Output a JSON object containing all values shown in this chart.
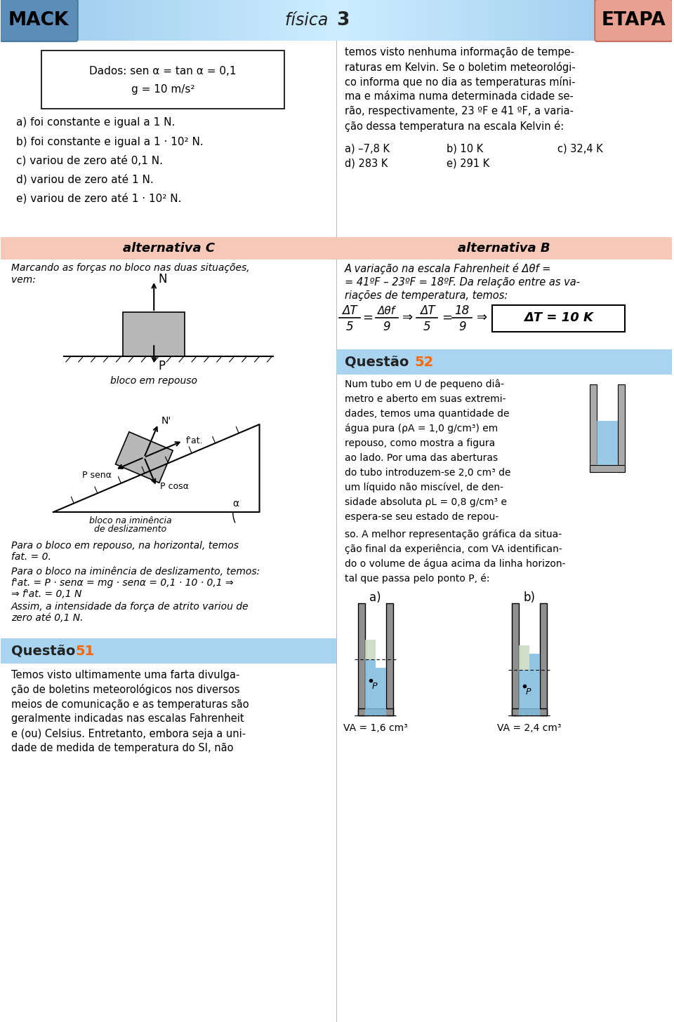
{
  "header_bg_color": "#A8D4F0",
  "header_text_mack": "MACK",
  "header_text_etapa": "ETAPA",
  "mack_bg": "#5B8DB8",
  "etapa_bg": "#E8A090",
  "page_bg": "#FFFFFF",
  "alt_banner_color": "#F5C8B8",
  "alt_banner_text_left": "alternativa C",
  "alt_banner_text_right": "alternativa B",
  "q_banner_color": "#A8D4F0",
  "box_text_line1": "Dados: sen α = tan α = 0,1",
  "box_text_line2": "g = 10 m/s²",
  "left_answers_box": [
    "a) foi constante e igual a 1 N.",
    "b) foi constante e igual a 1 · 10² N.",
    "c) variou de zero até 0,1 N.",
    "d) variou de zero até 1 N.",
    "e) variou de zero até 1 · 10² N."
  ],
  "right_lines": [
    "temos visto nenhuma informação de tempe-",
    "raturas em Kelvin. Se o boletim meteorológi-",
    "co informa que no dia as temperaturas míni-",
    "ma e máxima numa determinada cidade se-",
    "rão, respectivamente, 23 ºF e 41 ºF, a varia-",
    "ção dessa temperatura na escala Kelvin é:"
  ],
  "right_answers_row1": [
    "a) –7,8 K",
    "b) 10 K",
    "c) 32,4 K"
  ],
  "right_answers_row2": [
    "d) 283 K",
    "e) 291 K"
  ],
  "alt_b_lines": [
    "A variação na escala Fahrenheit é Δθf =",
    "= 41ºF – 23ºF = 18ºF. Da relação entre as va-",
    "riações de temperatura, temos:"
  ],
  "alt_c_intro": [
    "Marcando as forças no bloco nas duas situações,",
    "vem:"
  ],
  "bloco_repouso_label": "bloco em repouso",
  "para1_lines": [
    "Para o bloco em repouso, na horizontal, temos",
    "fat. = 0."
  ],
  "para2_lines": [
    "Para o bloco na iminência de deslizamento, temos:",
    "f'at. = P · senα = mg · senα = 0,1 · 10 · 0,1 ⇒",
    "⇒ f'at. = 0,1 N"
  ],
  "assim_lines": [
    "Assim, a intensidade da força de atrito variou de",
    "zero até 0,1 N."
  ],
  "q51_lines": [
    "Temos visto ultimamente uma farta divulga-",
    "ção de boletins meteorológicos nos diversos",
    "meios de comunicação e as temperaturas são",
    "geralmente indicadas nas escalas Fahrenheit",
    "e (ou) Celsius. Entretanto, embora seja a uni-",
    "dade de medida de temperatura do SI, não"
  ],
  "q52_lines_a": [
    "Num tubo em U de pequeno diâ-",
    "metro e aberto em suas extremi-",
    "dades, temos uma quantidade de",
    "água pura (ρA = 1,0 g/cm³) em",
    "repouso, como mostra a figura",
    "ao lado. Por uma das aberturas",
    "do tubo introduzem-se 2,0 cm³ de",
    "um líquido não miscível, de den-",
    "sidade absoluta ρL = 0,8 g/cm³ e",
    "espera-se seu estado de repou-"
  ],
  "q52_lines_b": [
    "so. A melhor representação gráfica da situa-",
    "ção final da experiência, com VA identifican-",
    "do o volume de água acima da linha horizon-",
    "tal que passa pelo ponto P, é:"
  ],
  "va_a_label": "VA = 1,6 cm³",
  "va_b_label": "VA = 2,4 cm³"
}
